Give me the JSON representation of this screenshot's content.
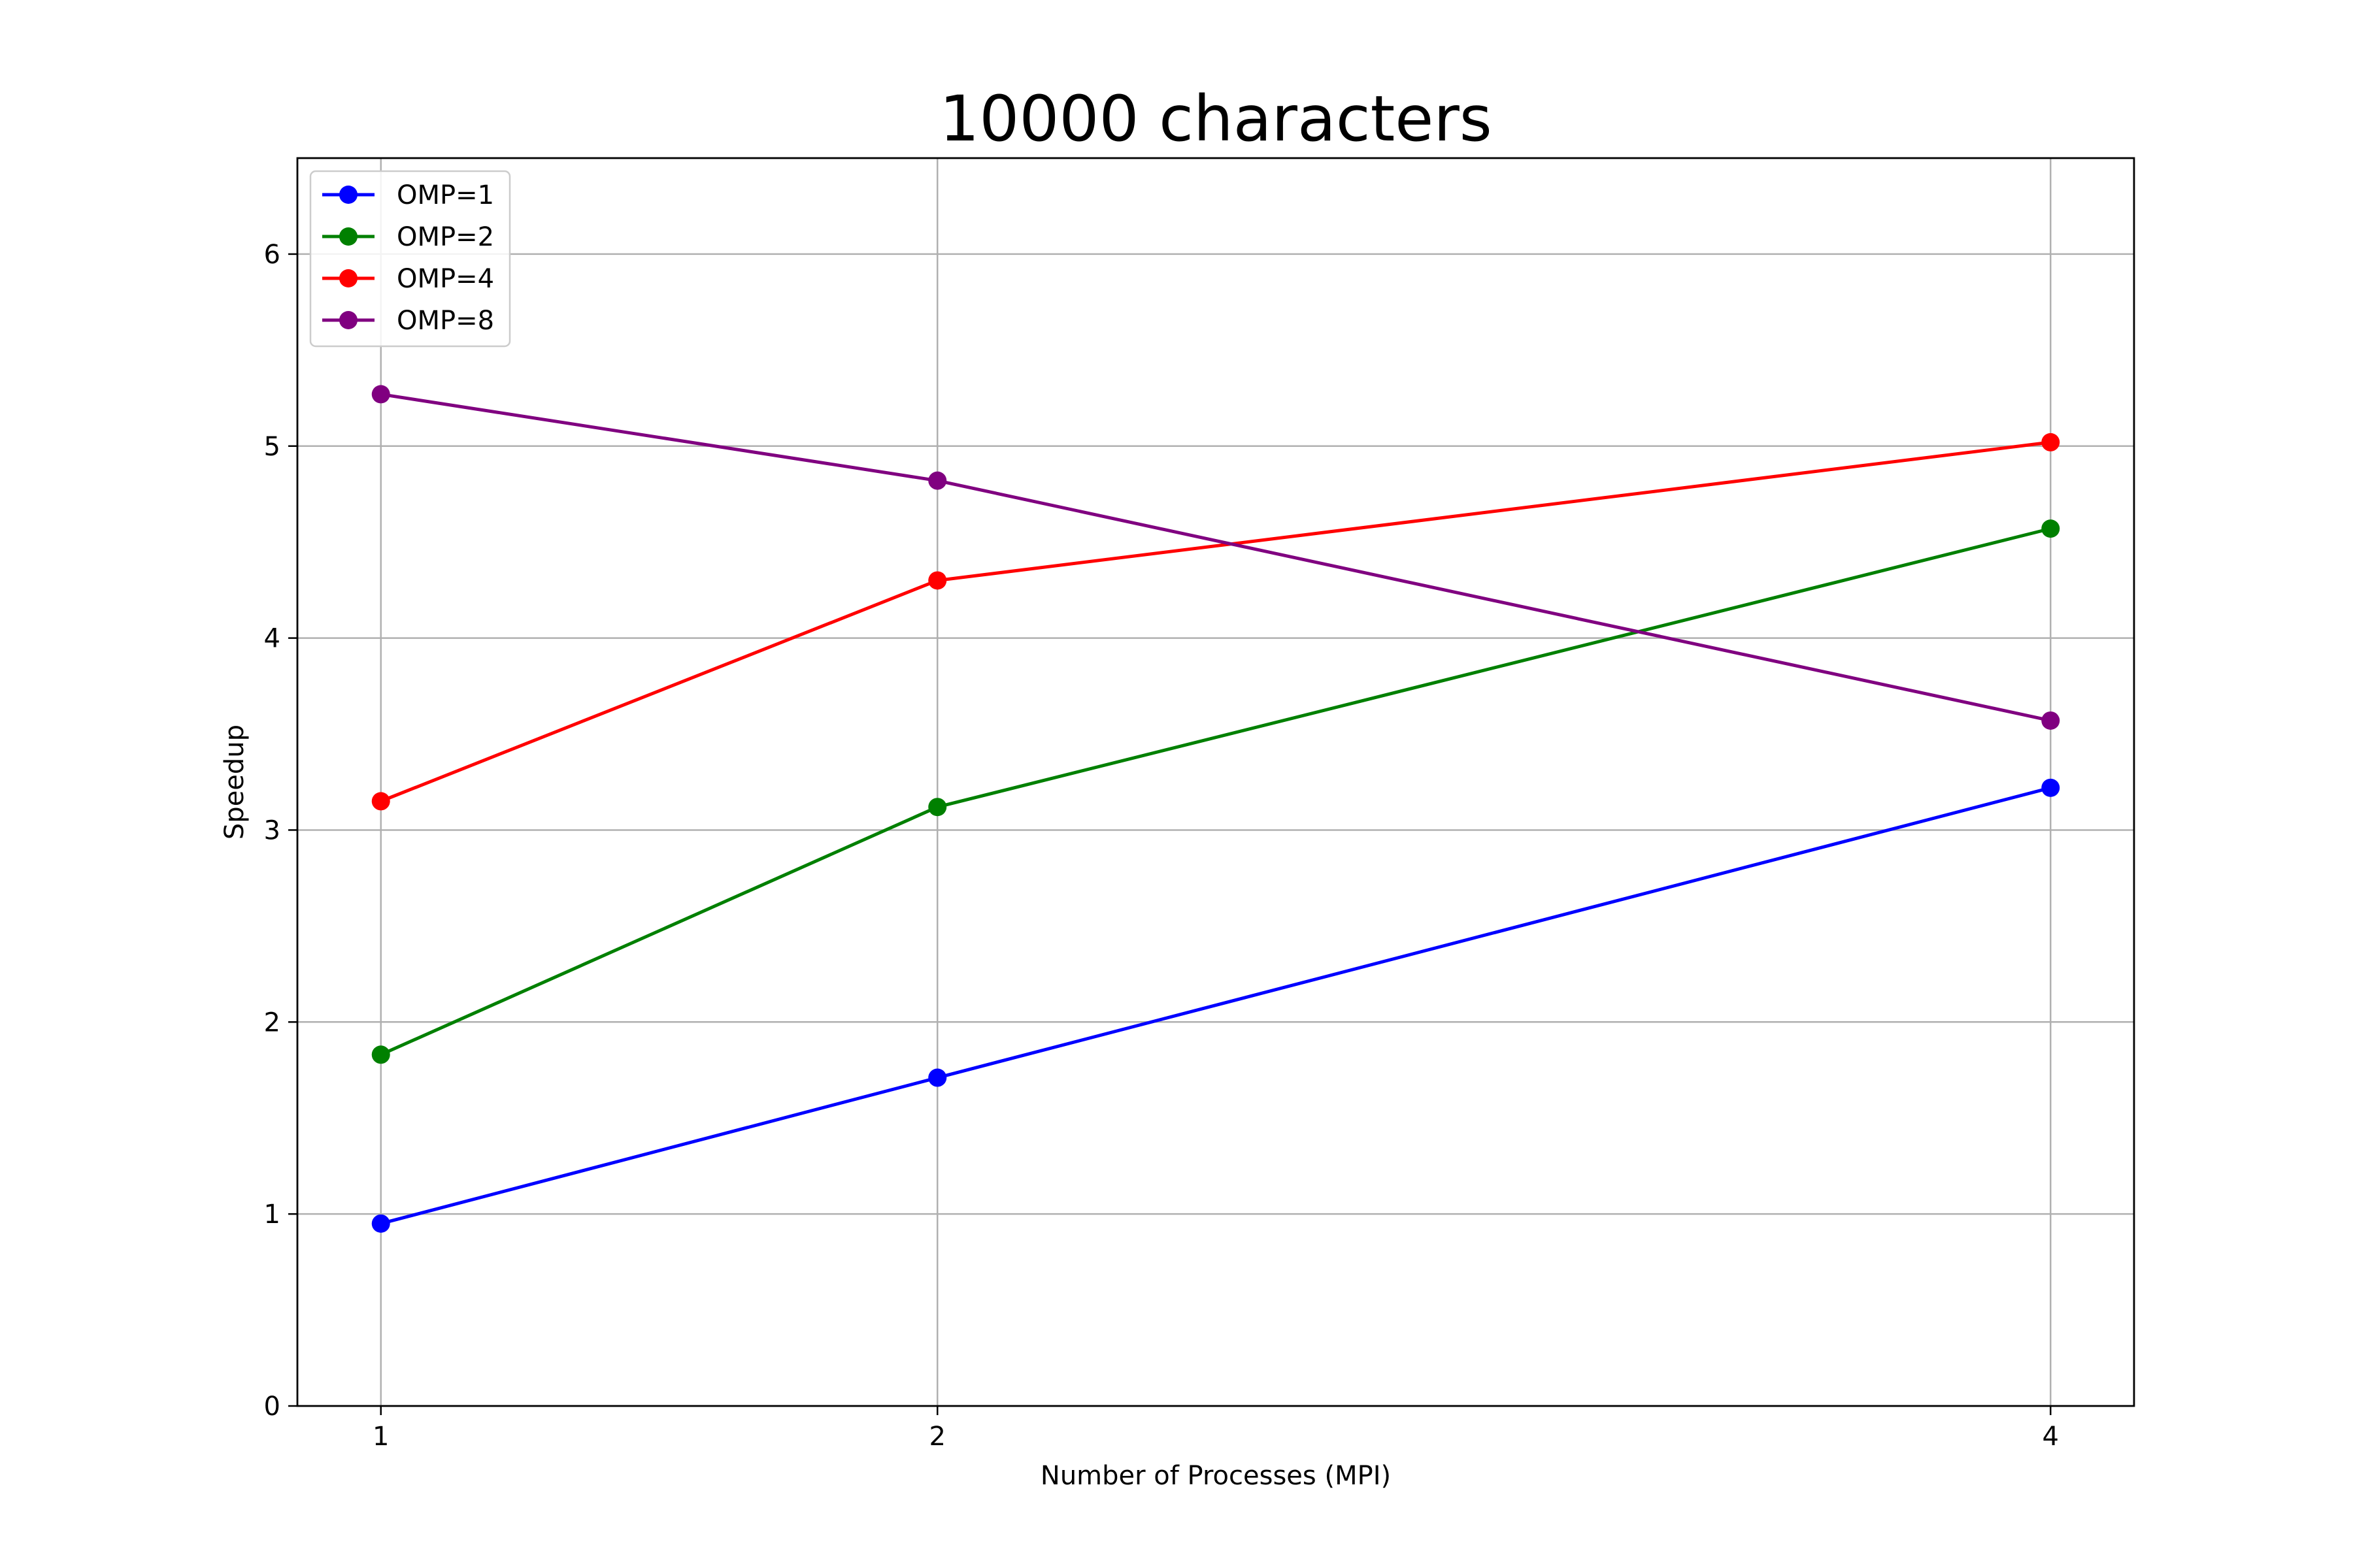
{
  "chart_data": {
    "type": "line",
    "title": "10000 characters",
    "xlabel": "Number of Processes (MPI)",
    "ylabel": "Speedup",
    "x": [
      1,
      2,
      4
    ],
    "x_ticks": [
      "1",
      "2",
      "4"
    ],
    "y_ticks": [
      "0",
      "1",
      "2",
      "3",
      "4",
      "5",
      "6"
    ],
    "xlim": [
      0.85,
      4.15
    ],
    "ylim": [
      0,
      6.5
    ],
    "grid": true,
    "legend_position": "top-left",
    "series": [
      {
        "name": "OMP=1",
        "color": "#0000ff",
        "values": [
          0.95,
          1.71,
          3.22
        ]
      },
      {
        "name": "OMP=2",
        "color": "#008000",
        "values": [
          1.83,
          3.12,
          4.57
        ]
      },
      {
        "name": "OMP=4",
        "color": "#ff0000",
        "values": [
          3.15,
          4.3,
          5.02
        ]
      },
      {
        "name": "OMP=8",
        "color": "#800080",
        "values": [
          5.27,
          4.82,
          3.57
        ]
      }
    ]
  }
}
